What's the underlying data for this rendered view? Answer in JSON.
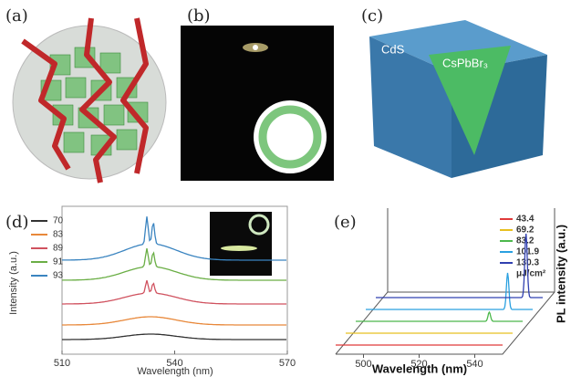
{
  "panels": {
    "a": {
      "label": "(a)"
    },
    "b": {
      "label": "(b)"
    },
    "c": {
      "label": "(c)",
      "texts": [
        "CdS",
        "CsPbBr₃"
      ]
    },
    "d": {
      "label": "(d)",
      "xlabel": "Wavelength (nm)",
      "ylabel": "Intensity (a.u.)",
      "xlim": [
        510,
        570
      ],
      "xticks": [
        510,
        540,
        570
      ],
      "series": [
        {
          "name": "70",
          "color": "#333333"
        },
        {
          "name": "83",
          "color": "#e8883a"
        },
        {
          "name": "89",
          "color": "#d0525f"
        },
        {
          "name": "91",
          "color": "#6aae45"
        },
        {
          "name": "93",
          "color": "#3a84c0"
        }
      ]
    },
    "e": {
      "label": "(e)",
      "xlabel": "Wavelength (nm)",
      "ylabel": "PL intensity (a.u.)",
      "unit": "μJ/cm²",
      "xlim": [
        490,
        550
      ],
      "xticks": [
        500,
        520,
        540
      ],
      "series": [
        {
          "name": "43.4",
          "color": "#e03a3a"
        },
        {
          "name": "69.2",
          "color": "#e8c020"
        },
        {
          "name": "83.2",
          "color": "#4cb84c"
        },
        {
          "name": "101.9",
          "color": "#2aa0e0"
        },
        {
          "name": "130.3",
          "color": "#3040b0"
        }
      ]
    }
  }
}
